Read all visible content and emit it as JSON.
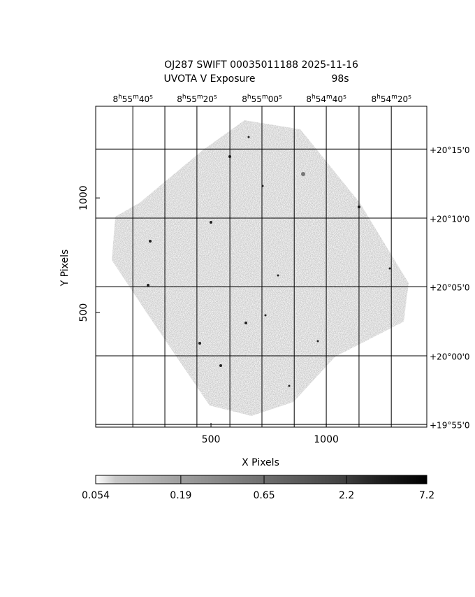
{
  "chart_data": {
    "type": "image",
    "title": "OJ287 SWIFT 00035011188 2025-11-16",
    "subtitle": "UVOTA V Exposure",
    "exposure": "98s",
    "xlabel": "X Pixels",
    "ylabel": "Y Pixels",
    "xlim": [
      0,
      1436
    ],
    "ylim": [
      0,
      1400
    ],
    "xticks": [
      500,
      1000
    ],
    "yticks": [
      500,
      1000
    ],
    "ra_ticks": [
      {
        "value": 161,
        "label": "8h55m40s"
      },
      {
        "value": 439,
        "label": "8h55m20s"
      },
      {
        "value": 721,
        "label": "8h55m00s"
      },
      {
        "value": 1000,
        "label": "8h54m40s"
      },
      {
        "value": 1282,
        "label": "8h54m20s"
      }
    ],
    "ra_grid": [
      300,
      582,
      861,
      1142
    ],
    "dec_ticks": [
      {
        "value": 1213,
        "label": "+20°15'0"
      },
      {
        "value": 912,
        "label": "+20°10'0"
      },
      {
        "value": 613,
        "label": "+20°05'0"
      },
      {
        "value": 311,
        "label": "+20°00'0"
      },
      {
        "value": 12,
        "label": "+19°55'0"
      }
    ],
    "grid": true,
    "colorbar": {
      "lim": [
        0.054,
        7.2
      ],
      "log": true,
      "ticks": [
        0.054,
        0.19,
        0.65,
        2.2,
        7.2
      ]
    }
  }
}
